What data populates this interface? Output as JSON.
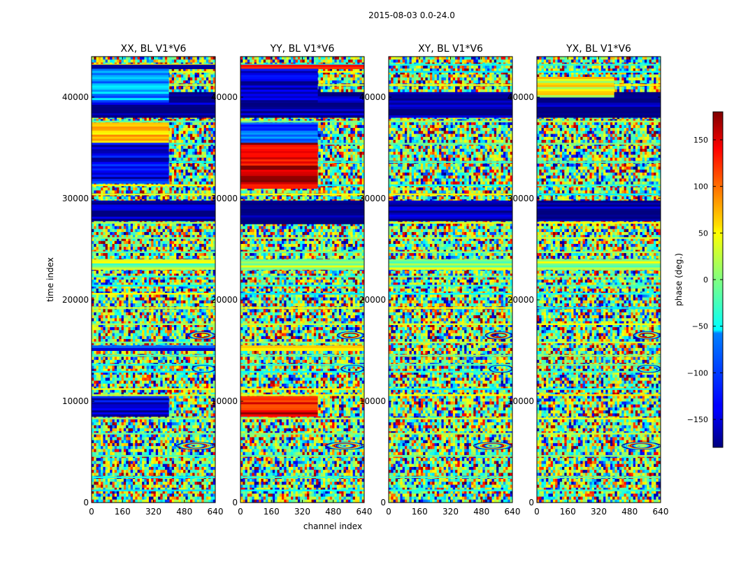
{
  "chart_data": {
    "type": "heatmap",
    "suptitle": "2015-08-03 0.0-24.0",
    "xlabel": "channel index",
    "ylabel": "time index",
    "x_range": [
      0,
      640
    ],
    "y_range": [
      0,
      44000
    ],
    "x_ticks": [
      0,
      160,
      320,
      480,
      640
    ],
    "y_ticks": [
      0,
      10000,
      20000,
      30000,
      40000
    ],
    "x_tick_labels": [
      "0",
      "160",
      "320",
      "480",
      "640"
    ],
    "y_tick_labels": [
      "0",
      "10000",
      "20000",
      "30000",
      "40000"
    ],
    "panels": [
      {
        "title": "XX, BL V1*V6",
        "blocks": [
          {
            "y0": 38000,
            "y1": 40500,
            "x0": 0,
            "x1": 640,
            "phase": -175
          },
          {
            "y0": 42800,
            "y1": 43200,
            "x0": 0,
            "x1": 640,
            "phase": -170
          },
          {
            "y0": 39500,
            "y1": 42800,
            "x0": 0,
            "x1": 400,
            "phase": -80
          },
          {
            "y0": 35500,
            "y1": 37500,
            "x0": 0,
            "x1": 400,
            "phase": 60
          },
          {
            "y0": 31500,
            "y1": 35500,
            "x0": 0,
            "x1": 400,
            "phase": -140
          },
          {
            "y0": 27800,
            "y1": 29800,
            "x0": 0,
            "x1": 640,
            "phase": -175
          },
          {
            "y0": 23000,
            "y1": 24000,
            "x0": 0,
            "x1": 640,
            "phase": 10
          },
          {
            "y0": 8500,
            "y1": 10500,
            "x0": 0,
            "x1": 400,
            "phase": -150
          },
          {
            "y0": 15000,
            "y1": 15500,
            "x0": 0,
            "x1": 640,
            "phase": -130
          }
        ]
      },
      {
        "title": "YY, BL V1*V6",
        "blocks": [
          {
            "y0": 38000,
            "y1": 40500,
            "x0": 0,
            "x1": 640,
            "phase": -175
          },
          {
            "y0": 42800,
            "y1": 43200,
            "x0": 0,
            "x1": 640,
            "phase": 150
          },
          {
            "y0": 39500,
            "y1": 42800,
            "x0": 0,
            "x1": 400,
            "phase": -160
          },
          {
            "y0": 35500,
            "y1": 37500,
            "x0": 0,
            "x1": 400,
            "phase": -100
          },
          {
            "y0": 31000,
            "y1": 35500,
            "x0": 0,
            "x1": 400,
            "phase": 150
          },
          {
            "y0": 27500,
            "y1": 29800,
            "x0": 0,
            "x1": 640,
            "phase": -175
          },
          {
            "y0": 23000,
            "y1": 24000,
            "x0": 0,
            "x1": 640,
            "phase": 10
          },
          {
            "y0": 8500,
            "y1": 10500,
            "x0": 0,
            "x1": 400,
            "phase": 140
          },
          {
            "y0": 15000,
            "y1": 15500,
            "x0": 0,
            "x1": 640,
            "phase": 60
          }
        ]
      },
      {
        "title": "XY, BL V1*V6",
        "blocks": [
          {
            "y0": 38000,
            "y1": 40500,
            "x0": 0,
            "x1": 640,
            "phase": -175
          },
          {
            "y0": 27800,
            "y1": 29800,
            "x0": 0,
            "x1": 640,
            "phase": -175
          },
          {
            "y0": 23000,
            "y1": 24000,
            "x0": 0,
            "x1": 640,
            "phase": 10
          }
        ]
      },
      {
        "title": "YX, BL V1*V6",
        "blocks": [
          {
            "y0": 38000,
            "y1": 40500,
            "x0": 0,
            "x1": 640,
            "phase": -175
          },
          {
            "y0": 27800,
            "y1": 29800,
            "x0": 0,
            "x1": 640,
            "phase": -175
          },
          {
            "y0": 23000,
            "y1": 24000,
            "x0": 0,
            "x1": 640,
            "phase": 10
          },
          {
            "y0": 40000,
            "y1": 42000,
            "x0": 0,
            "x1": 400,
            "phase": 40
          }
        ]
      }
    ],
    "horizontal_stripe_rows": [
      1200,
      2500,
      4600,
      6800,
      8300,
      10600,
      11200,
      12900,
      13600,
      14500,
      15800,
      17600,
      19200,
      20600,
      21400,
      22300,
      24700,
      26100,
      27600,
      30400,
      31300,
      33600,
      35400,
      37600,
      39300,
      41200,
      42500,
      43200
    ],
    "fringe_regions": [
      {
        "y": 5600,
        "x0": 440,
        "x1": 640,
        "count": 3
      },
      {
        "y": 16500,
        "x0": 500,
        "x1": 640,
        "count": 2
      },
      {
        "y": 13200,
        "x0": 520,
        "x1": 640,
        "count": 1
      }
    ],
    "colorbar": {
      "label": "phase (deg.)",
      "range": [
        -180,
        180
      ],
      "ticks": [
        150,
        100,
        50,
        0,
        -50,
        -100,
        -150
      ],
      "tick_labels": [
        "150",
        "100",
        "50",
        "0",
        "−50",
        "−100",
        "−150"
      ],
      "colormap": "jet"
    }
  }
}
